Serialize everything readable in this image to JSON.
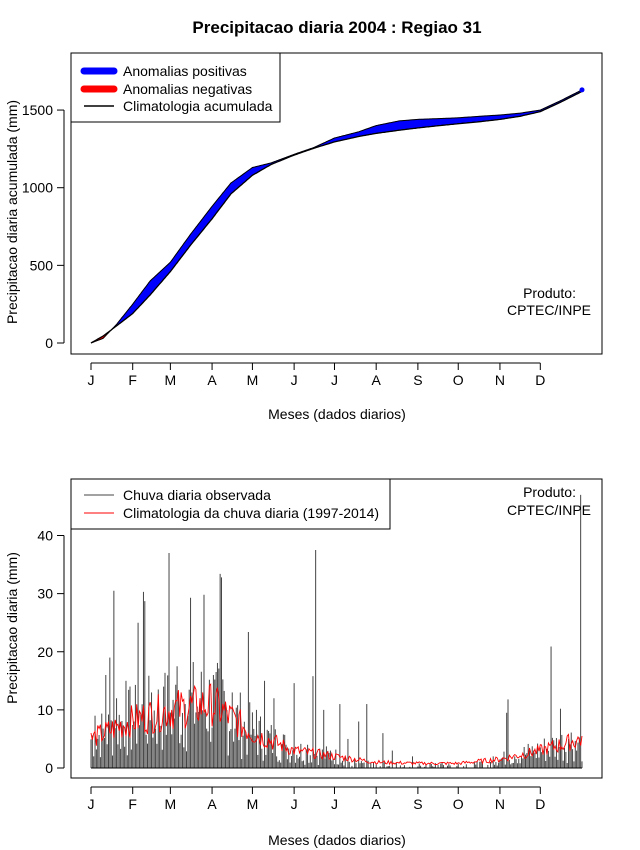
{
  "title": "Precipitacao diaria 2004 : Regiao 31",
  "colors": {
    "positive": "#0000ff",
    "negative": "#ff0000",
    "climatology": "#000000",
    "observed": "#444444",
    "clim_daily": "#ff0000"
  },
  "chart_data": [
    {
      "type": "area",
      "name": "accumulated",
      "xlabel": "Meses (dados diarios)",
      "ylabel": "Precipitacao diaria acumulada (mm)",
      "month_ticks": [
        "J",
        "F",
        "M",
        "A",
        "M",
        "J",
        "J",
        "A",
        "S",
        "O",
        "N",
        "D"
      ],
      "month_start_days": [
        1,
        32,
        60,
        91,
        121,
        152,
        182,
        213,
        244,
        274,
        305,
        335
      ],
      "xlim": [
        1,
        366
      ],
      "ylim": [
        0,
        1700
      ],
      "y_ticks": [
        0,
        500,
        1000,
        1500
      ],
      "legend": {
        "position": "top-left",
        "entries": [
          "Anomalias positivas",
          "Anomalias negativas",
          "Climatologia acumulada"
        ]
      },
      "annotation": [
        "Produto:",
        "CPTEC/INPE"
      ],
      "climatology": {
        "days": [
          1,
          10,
          20,
          32,
          45,
          60,
          75,
          91,
          105,
          121,
          135,
          152,
          167,
          182,
          200,
          213,
          230,
          244,
          260,
          274,
          290,
          305,
          320,
          335,
          350,
          366
        ],
        "values": [
          0,
          45,
          110,
          190,
          310,
          460,
          630,
          800,
          960,
          1080,
          1150,
          1210,
          1255,
          1295,
          1330,
          1350,
          1370,
          1385,
          1400,
          1412,
          1425,
          1440,
          1460,
          1490,
          1550,
          1620
        ]
      },
      "observed": {
        "days": [
          1,
          10,
          20,
          32,
          45,
          60,
          75,
          91,
          105,
          121,
          135,
          152,
          167,
          182,
          200,
          213,
          230,
          244,
          260,
          274,
          290,
          305,
          320,
          335,
          350,
          366
        ],
        "values": [
          0,
          30,
          120,
          250,
          400,
          520,
          700,
          880,
          1030,
          1130,
          1160,
          1215,
          1260,
          1320,
          1360,
          1400,
          1430,
          1440,
          1445,
          1450,
          1460,
          1468,
          1480,
          1500,
          1560,
          1630
        ]
      }
    },
    {
      "type": "bar",
      "name": "daily",
      "xlabel": "Meses (dados diarios)",
      "ylabel": "Precipitacao diaria (mm)",
      "month_ticks": [
        "J",
        "F",
        "M",
        "A",
        "M",
        "J",
        "J",
        "A",
        "S",
        "O",
        "N",
        "D"
      ],
      "month_start_days": [
        1,
        32,
        60,
        91,
        121,
        152,
        182,
        213,
        244,
        274,
        305,
        335
      ],
      "xlim": [
        1,
        366
      ],
      "ylim": [
        0,
        48
      ],
      "y_ticks": [
        0,
        10,
        20,
        30,
        40
      ],
      "legend": {
        "position": "top-left",
        "entries": [
          "Chuva diaria observada",
          "Climatologia da chuva diaria (1997-2014)"
        ]
      },
      "annotation": [
        "Produto:",
        "CPTEC/INPE"
      ],
      "observed_peaks": [
        {
          "day": 4,
          "value": 9
        },
        {
          "day": 12,
          "value": 16
        },
        {
          "day": 15,
          "value": 19
        },
        {
          "day": 18,
          "value": 30.5
        },
        {
          "day": 20,
          "value": 12
        },
        {
          "day": 27,
          "value": 15
        },
        {
          "day": 33,
          "value": 8
        },
        {
          "day": 36,
          "value": 25
        },
        {
          "day": 40,
          "value": 30.3
        },
        {
          "day": 41,
          "value": 28.7
        },
        {
          "day": 46,
          "value": 13
        },
        {
          "day": 55,
          "value": 14
        },
        {
          "day": 59,
          "value": 37
        },
        {
          "day": 65,
          "value": 17.5
        },
        {
          "day": 71,
          "value": 11
        },
        {
          "day": 75,
          "value": 29.3
        },
        {
          "day": 82,
          "value": 11
        },
        {
          "day": 85,
          "value": 29.8
        },
        {
          "day": 92,
          "value": 16
        },
        {
          "day": 97,
          "value": 33.4
        },
        {
          "day": 98,
          "value": 32.8
        },
        {
          "day": 106,
          "value": 13
        },
        {
          "day": 118,
          "value": 23.4
        },
        {
          "day": 124,
          "value": 10
        },
        {
          "day": 130,
          "value": 15
        },
        {
          "day": 137,
          "value": 12
        },
        {
          "day": 146,
          "value": 4
        },
        {
          "day": 152,
          "value": 14.6
        },
        {
          "day": 162,
          "value": 4
        },
        {
          "day": 166,
          "value": 15.8
        },
        {
          "day": 168,
          "value": 37.5
        },
        {
          "day": 174,
          "value": 10
        },
        {
          "day": 179,
          "value": 3
        },
        {
          "day": 186,
          "value": 11
        },
        {
          "day": 192,
          "value": 5
        },
        {
          "day": 200,
          "value": 8
        },
        {
          "day": 206,
          "value": 11
        },
        {
          "day": 218,
          "value": 6
        },
        {
          "day": 225,
          "value": 3
        },
        {
          "day": 240,
          "value": 2
        },
        {
          "day": 262,
          "value": 1
        },
        {
          "day": 286,
          "value": 1
        },
        {
          "day": 300,
          "value": 2
        },
        {
          "day": 310,
          "value": 9.5
        },
        {
          "day": 311,
          "value": 11.8
        },
        {
          "day": 316,
          "value": 2
        },
        {
          "day": 330,
          "value": 3
        },
        {
          "day": 343,
          "value": 20.9
        },
        {
          "day": 350,
          "value": 10.2
        },
        {
          "day": 356,
          "value": 5
        },
        {
          "day": 362,
          "value": 3
        },
        {
          "day": 365,
          "value": 47
        }
      ]
    }
  ]
}
